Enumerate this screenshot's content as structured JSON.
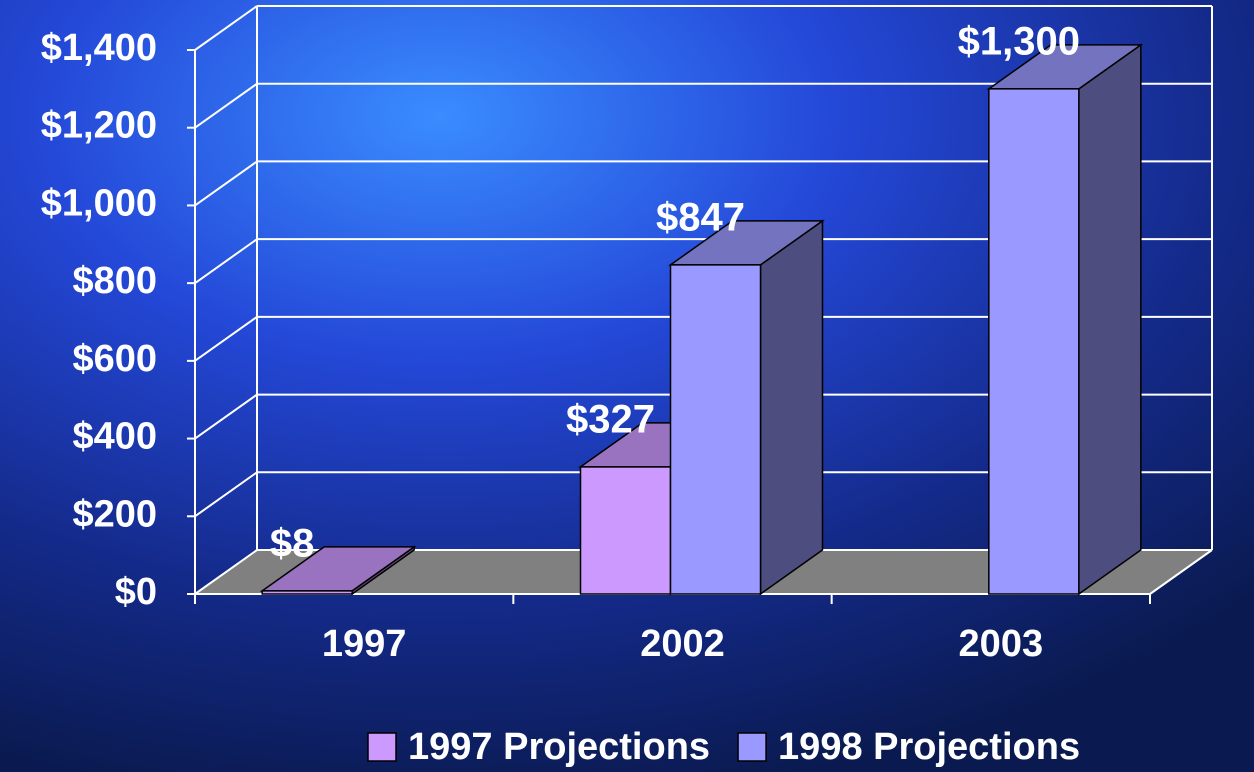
{
  "chart_data": {
    "type": "bar3d",
    "categories": [
      "1997",
      "2002",
      "2003"
    ],
    "series": [
      {
        "name": "1997 Projections",
        "color": "#cc99ff",
        "values": [
          8,
          327,
          null
        ],
        "value_labels": [
          "$8",
          "$327",
          null
        ]
      },
      {
        "name": "1998 Projections",
        "color": "#9999ff",
        "values": [
          null,
          847,
          1300
        ],
        "value_labels": [
          null,
          "$847",
          "$1,300"
        ]
      }
    ],
    "ylim": [
      0,
      1400
    ],
    "yticks": [
      {
        "value": 0,
        "label": "$0"
      },
      {
        "value": 200,
        "label": "$200"
      },
      {
        "value": 400,
        "label": "$400"
      },
      {
        "value": 600,
        "label": "$600"
      },
      {
        "value": 800,
        "label": "$800"
      },
      {
        "value": 1000,
        "label": "$1,000"
      },
      {
        "value": 1200,
        "label": "$1,200"
      },
      {
        "value": 1400,
        "label": "$1,400"
      }
    ],
    "grid": true,
    "legend": "bottom"
  }
}
